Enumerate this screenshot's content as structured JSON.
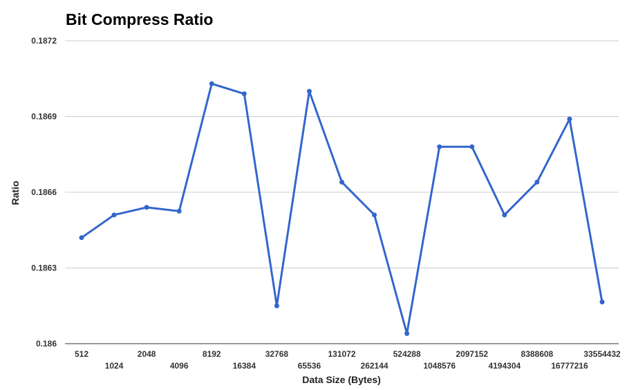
{
  "chart_data": {
    "type": "line",
    "title": "Bit Compress Ratio",
    "xlabel": "Data Size (Bytes)",
    "ylabel": "Ratio",
    "categories": [
      "512",
      "1024",
      "2048",
      "4096",
      "8192",
      "16384",
      "32768",
      "65536",
      "131072",
      "262144",
      "524288",
      "1048576",
      "2097152",
      "4194304",
      "8388608",
      "16777216",
      "33554432"
    ],
    "series": [
      {
        "values": [
          0.18642,
          0.18651,
          0.18654,
          0.186525,
          0.18703,
          0.18699,
          0.18615,
          0.187,
          0.18664,
          0.18651,
          0.18604,
          0.18678,
          0.18678,
          0.18651,
          0.18664,
          0.18689,
          0.186165
        ],
        "color": "#3366cc"
      }
    ],
    "ylim": [
      0.186,
      0.1872
    ],
    "yticks": [
      "0.186",
      "0.1863",
      "0.1866",
      "0.1869",
      "0.1872"
    ],
    "grid": true
  }
}
